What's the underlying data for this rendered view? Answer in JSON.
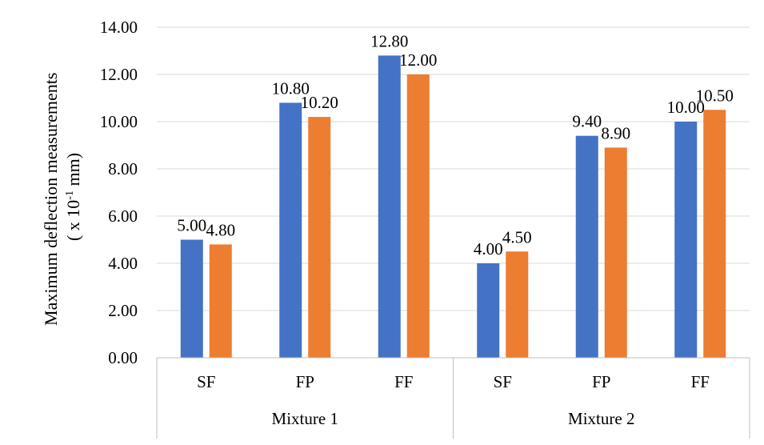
{
  "chart_data": {
    "type": "bar",
    "ylabel_line1": "Maximum deflection measurements",
    "ylabel_line2_prefix": "( x 10",
    "ylabel_line2_exp": "-1",
    "ylabel_line2_suffix": " mm)",
    "ylim": [
      0,
      14
    ],
    "y_ticks": [
      "0.00",
      "2.00",
      "4.00",
      "6.00",
      "8.00",
      "10.00",
      "12.00",
      "14.00"
    ],
    "grid": true,
    "groups": [
      {
        "name": "Mixture 1",
        "categories": [
          "SF",
          "FP",
          "FF"
        ]
      },
      {
        "name": "Mixture 2",
        "categories": [
          "SF",
          "FP",
          "FF"
        ]
      }
    ],
    "series": [
      {
        "color": "#4472C4",
        "values": [
          5.0,
          10.8,
          12.8,
          4.0,
          9.4,
          10.0
        ],
        "labels": [
          "5.00",
          "10.80",
          "12.80",
          "4.00",
          "9.40",
          "10.00"
        ]
      },
      {
        "color": "#ED7D31",
        "values": [
          4.8,
          10.2,
          12.0,
          4.5,
          8.9,
          10.5
        ],
        "labels": [
          "4.80",
          "10.20",
          "12.00",
          "4.50",
          "8.90",
          "10.50"
        ]
      }
    ]
  }
}
